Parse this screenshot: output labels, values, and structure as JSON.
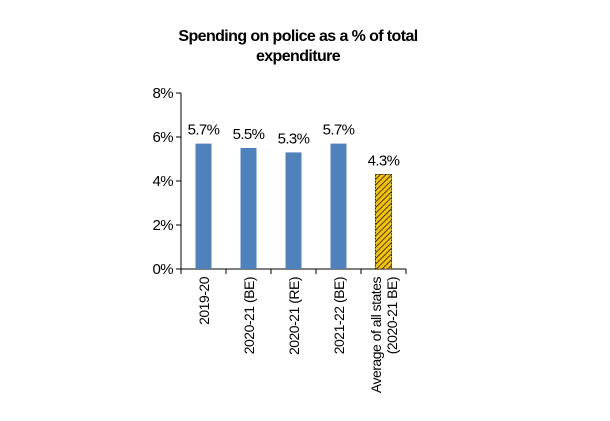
{
  "chart_data": {
    "type": "bar",
    "title": "Spending on police as a % of total expenditure",
    "categories": [
      "2019-20",
      "2020-21 (BE)",
      "2020-21 (RE)",
      "2021-22 (BE)",
      "Average of all states (2020-21 BE)"
    ],
    "values": [
      5.7,
      5.5,
      5.3,
      5.7,
      4.3
    ],
    "value_labels": [
      "5.7%",
      "5.5%",
      "5.3%",
      "5.7%",
      "4.3%"
    ],
    "colors": [
      "#4f81bd",
      "#4f81bd",
      "#4f81bd",
      "#4f81bd",
      "#f5c400"
    ],
    "ylim": [
      0,
      8
    ],
    "yticks": [
      {
        "value": 0,
        "label": "0%"
      },
      {
        "value": 2,
        "label": "2%"
      },
      {
        "value": 4,
        "label": "4%"
      },
      {
        "value": 6,
        "label": "6%"
      },
      {
        "value": 8,
        "label": "8%"
      }
    ],
    "grid": false
  }
}
